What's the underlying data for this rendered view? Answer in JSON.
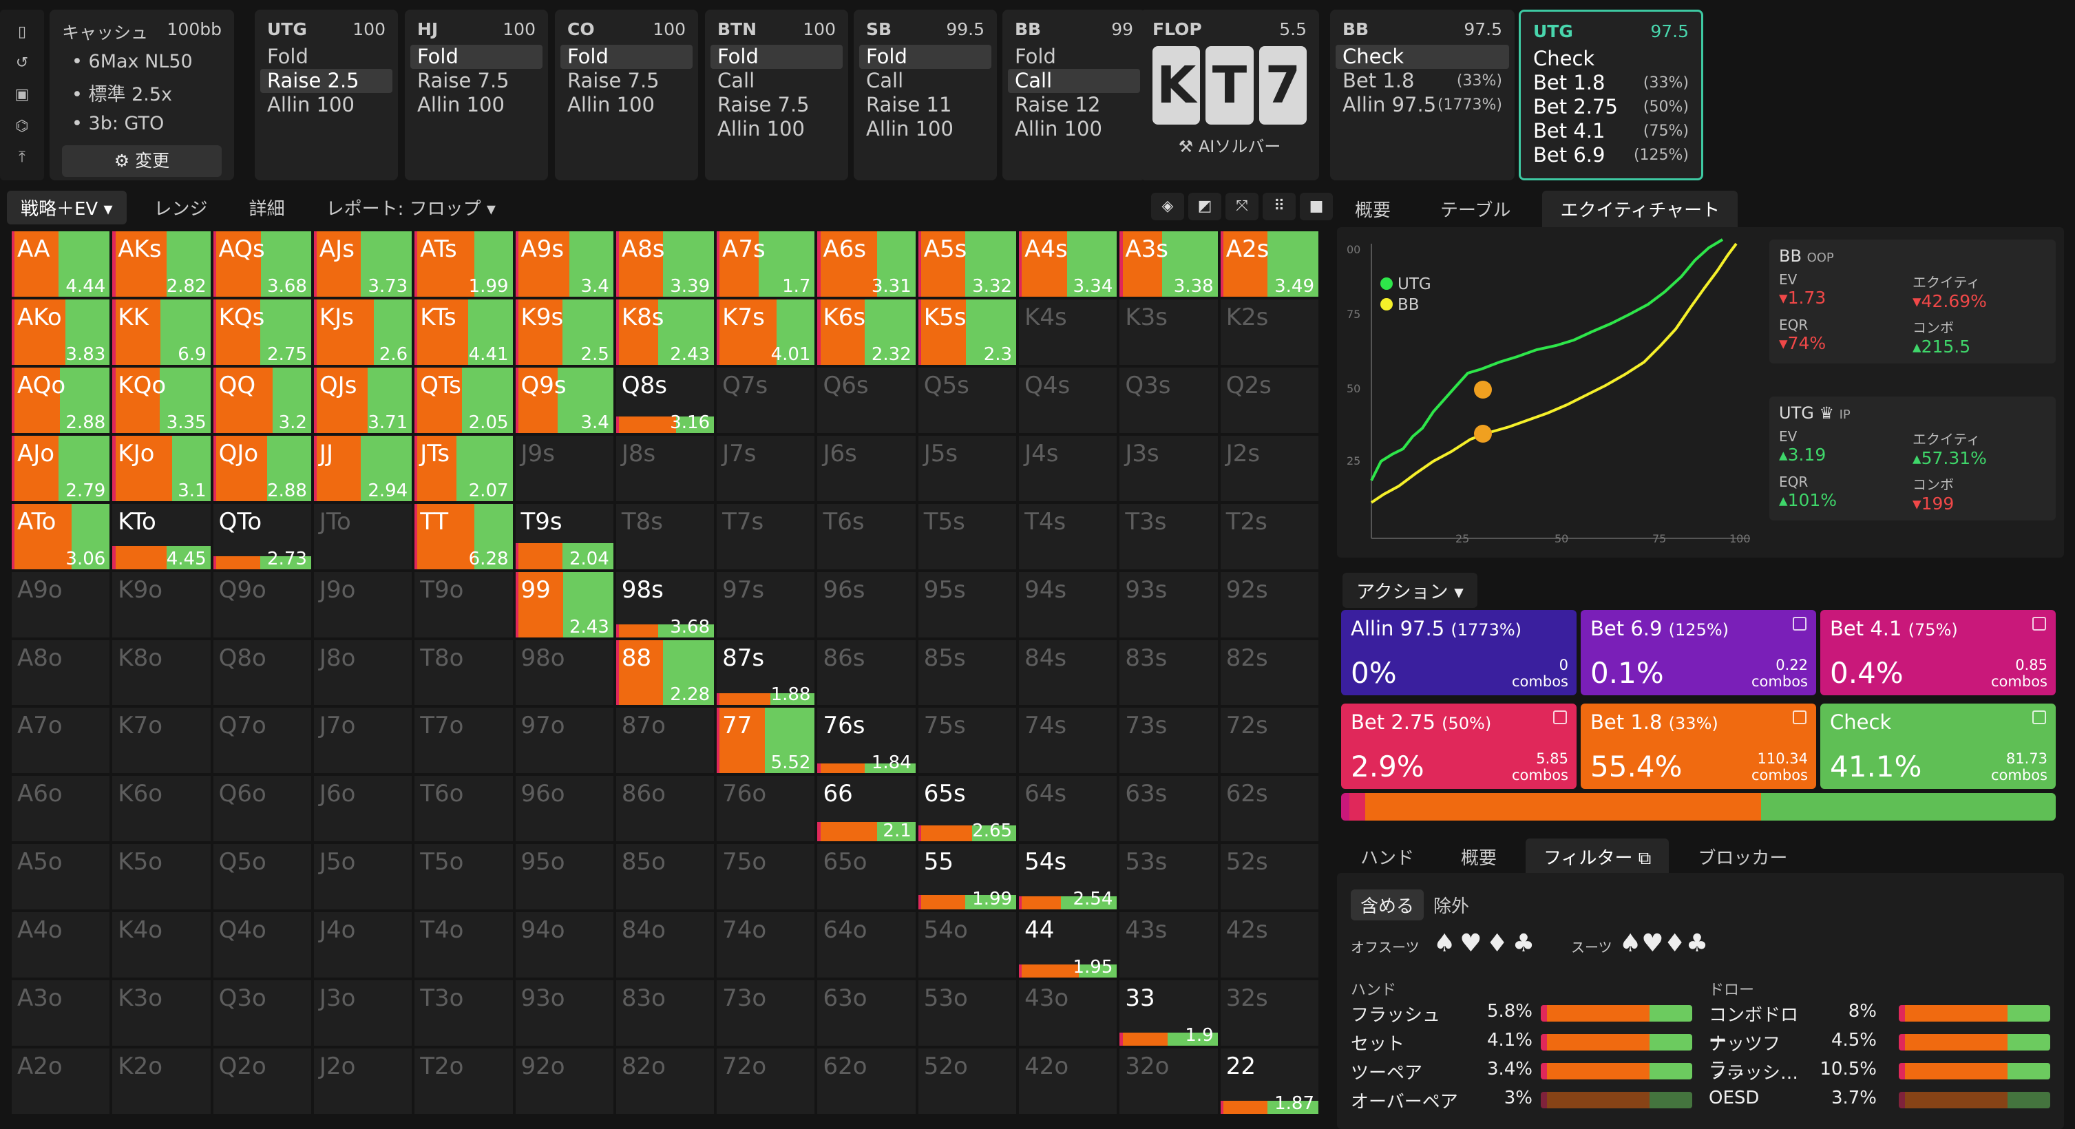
{
  "toolbar_icons": [
    "bookmark-icon",
    "history-icon",
    "save-icon",
    "gamepad-icon",
    "collapse-icon"
  ],
  "cash": {
    "title": "キャッシュ",
    "stack": "100bb",
    "items": [
      "6Max NL50",
      "標準 2.5x",
      "3b: GTO"
    ],
    "change": "変更"
  },
  "positions": [
    {
      "name": "UTG",
      "stack": "100",
      "acts": [
        {
          "l": "Fold"
        },
        {
          "l": "Raise 2.5",
          "sel": true
        },
        {
          "l": "Allin 100"
        }
      ]
    },
    {
      "name": "HJ",
      "stack": "100",
      "acts": [
        {
          "l": "Fold",
          "sel": true
        },
        {
          "l": "Raise 7.5"
        },
        {
          "l": "Allin 100"
        }
      ]
    },
    {
      "name": "CO",
      "stack": "100",
      "acts": [
        {
          "l": "Fold",
          "sel": true
        },
        {
          "l": "Raise 7.5"
        },
        {
          "l": "Allin 100"
        }
      ]
    },
    {
      "name": "BTN",
      "stack": "100",
      "acts": [
        {
          "l": "Fold",
          "sel": true
        },
        {
          "l": "Call"
        },
        {
          "l": "Raise 7.5"
        },
        {
          "l": "Allin 100"
        }
      ]
    },
    {
      "name": "SB",
      "stack": "99.5",
      "acts": [
        {
          "l": "Fold",
          "sel": true
        },
        {
          "l": "Call"
        },
        {
          "l": "Raise 11"
        },
        {
          "l": "Allin 100"
        }
      ]
    },
    {
      "name": "BB",
      "stack": "99",
      "acts": [
        {
          "l": "Fold"
        },
        {
          "l": "Call",
          "sel": true
        },
        {
          "l": "Raise 12"
        },
        {
          "l": "Allin 100"
        }
      ]
    }
  ],
  "flop": {
    "name": "FLOP",
    "pot": "5.5",
    "cards": [
      "K",
      "T",
      "7"
    ],
    "solver": "AIソルバー"
  },
  "bb_node": {
    "name": "BB",
    "stack": "97.5",
    "acts": [
      {
        "l": "Check",
        "sel": true
      },
      {
        "l": "Bet 1.8",
        "p": "(33%)"
      },
      {
        "l": "Allin 97.5",
        "p": "(1773%)"
      }
    ]
  },
  "utg_node": {
    "name": "UTG",
    "stack": "97.5",
    "acts": [
      {
        "l": "Check"
      },
      {
        "l": "Bet 1.8",
        "p": "(33%)"
      },
      {
        "l": "Bet 2.75",
        "p": "(50%)"
      },
      {
        "l": "Bet 4.1",
        "p": "(75%)"
      },
      {
        "l": "Bet 6.9",
        "p": "(125%)"
      }
    ]
  },
  "tabs": [
    "戦略＋EV",
    "レンジ",
    "詳細",
    "レポート: フロップ"
  ],
  "tool_icons": [
    "cube-icon",
    "contrast-icon",
    "expand-icon",
    "grid-icon",
    "square-icon"
  ],
  "colors": {
    "raise": "#f06a10",
    "call": "#6ccb5f",
    "bet": "#e0285a",
    "allin": "#7a1fb8",
    "empty": "#1f1f1f"
  },
  "grid": [
    [
      "AA|4.44|1",
      "AKs|2.82|1",
      "AQs|3.68|1",
      "AJs|3.73|1",
      "ATs|1.99|1",
      "A9s|3.4|1",
      "A8s|3.39|1",
      "A7s|1.7|1",
      "A6s|3.31|1",
      "A5s|3.32|1",
      "A4s|3.34|1",
      "A3s|3.38|1",
      "A2s|3.49|1"
    ],
    [
      "AKo|3.83|1",
      "KK|6.9|1",
      "KQs|2.75|1",
      "KJs|2.6|1",
      "KTs|4.41|1",
      "K9s|2.5|1",
      "K8s|2.43|1",
      "K7s|4.01|1",
      "K6s|2.32|1",
      "K5s|2.3|1",
      "K4s||0",
      "K3s||0",
      "K2s||0"
    ],
    [
      "AQo|2.88|1",
      "KQo|3.35|1",
      "QQ|3.2|1",
      "QJs|3.71|1",
      "QTs|2.05|1",
      "Q9s|3.4|1",
      "Q8s|3.16|0.25",
      "Q7s||0",
      "Q6s||0",
      "Q5s||0",
      "Q4s||0",
      "Q3s||0",
      "Q2s||0"
    ],
    [
      "AJo|2.79|1",
      "KJo|3.1|1",
      "QJo|2.88|1",
      "JJ|2.94|1",
      "JTs|2.07|1",
      "J9s||0",
      "J8s||0",
      "J7s||0",
      "J6s||0",
      "J5s||0",
      "J4s||0",
      "J3s||0",
      "J2s||0"
    ],
    [
      "ATo|3.06|1",
      "KTo|4.45|0.35",
      "QTo|2.73|0.2",
      "JTo||0",
      "TT|6.28|1",
      "T9s|2.04|0.4",
      "T8s||0",
      "T7s||0",
      "T6s||0",
      "T5s||0",
      "T4s||0",
      "T3s||0",
      "T2s||0"
    ],
    [
      "A9o||0",
      "K9o||0",
      "Q9o||0",
      "J9o||0",
      "T9o||0",
      "99|2.43|1",
      "98s|3.68|0.2",
      "97s||0",
      "96s||0",
      "95s||0",
      "94s||0",
      "93s||0",
      "92s||0"
    ],
    [
      "A8o||0",
      "K8o||0",
      "Q8o||0",
      "J8o||0",
      "T8o||0",
      "98o||0",
      "88|2.28|1",
      "87s|1.88|0.18",
      "86s||0",
      "85s||0",
      "84s||0",
      "83s||0",
      "82s||0"
    ],
    [
      "A7o||0",
      "K7o||0",
      "Q7o||0",
      "J7o||0",
      "T7o||0",
      "97o||0",
      "87o||0",
      "77|5.52|1",
      "76s|1.84|0.15",
      "75s||0",
      "74s||0",
      "73s||0",
      "72s||0"
    ],
    [
      "A6o||0",
      "K6o||0",
      "Q6o||0",
      "J6o||0",
      "T6o||0",
      "96o||0",
      "86o||0",
      "76o||0",
      "66|2.1|0.3",
      "65s|2.65|0.25",
      "64s||0",
      "63s||0",
      "62s||0"
    ],
    [
      "A5o||0",
      "K5o||0",
      "Q5o||0",
      "J5o||0",
      "T5o||0",
      "95o||0",
      "85o||0",
      "75o||0",
      "65o||0",
      "55|1.99|0.22",
      "54s|2.54|0.2",
      "53s||0",
      "52s||0"
    ],
    [
      "A4o||0",
      "K4o||0",
      "Q4o||0",
      "J4o||0",
      "T4o||0",
      "94o||0",
      "84o||0",
      "74o||0",
      "64o||0",
      "54o||0",
      "44|1.95|0.2",
      "43s||0",
      "42s||0"
    ],
    [
      "A3o||0",
      "K3o||0",
      "Q3o||0",
      "J3o||0",
      "T3o||0",
      "93o||0",
      "83o||0",
      "73o||0",
      "63o||0",
      "53o||0",
      "43o||0",
      "33|1.9|0.2",
      "32s||0"
    ],
    [
      "A2o||0",
      "K2o||0",
      "Q2o||0",
      "J2o||0",
      "T2o||0",
      "92o||0",
      "82o||0",
      "72o||0",
      "62o||0",
      "52o||0",
      "42o||0",
      "32o||0",
      "22|1.87|0.2"
    ]
  ],
  "right_tabs": [
    "概要",
    "テーブル",
    "エクイティチャート"
  ],
  "chart": {
    "legend": [
      "UTG",
      "BB"
    ],
    "yticks": [
      "00",
      "75",
      "50",
      "25"
    ],
    "xticks": [
      "25",
      "50",
      "75",
      "100"
    ]
  },
  "bb_stats": {
    "title": "BB",
    "tag": "OOP",
    "ev_k": "EV",
    "ev": "1.73",
    "eq_k": "エクイティ",
    "eq": "42.69%",
    "eqr_k": "EQR",
    "eqr": "74%",
    "combo_k": "コンボ",
    "combo": "215.5"
  },
  "utg_stats": {
    "title": "UTG",
    "tag": "IP",
    "ev_k": "EV",
    "ev": "3.19",
    "eq_k": "エクイティ",
    "eq": "57.31%",
    "eqr_k": "EQR",
    "eqr": "101%",
    "combo_k": "コンボ",
    "combo": "199"
  },
  "action_label": "アクション",
  "actions": [
    {
      "t": "Allin 97.5",
      "p": "(1773%)",
      "pc": "0%",
      "c": "0",
      "unit": "combos",
      "col": "#3a1f9e"
    },
    {
      "t": "Bet 6.9",
      "p": "(125%)",
      "pc": "0.1%",
      "c": "0.22",
      "unit": "combos",
      "col": "#7a1fb8"
    },
    {
      "t": "Bet 4.1",
      "p": "(75%)",
      "pc": "0.4%",
      "c": "0.85",
      "unit": "combos",
      "col": "#c9187a"
    },
    {
      "t": "Bet 2.75",
      "p": "(50%)",
      "pc": "2.9%",
      "c": "5.85",
      "unit": "combos",
      "col": "#e0285a"
    },
    {
      "t": "Bet 1.8",
      "p": "(33%)",
      "pc": "55.4%",
      "c": "110.34",
      "unit": "combos",
      "col": "#f06a10"
    },
    {
      "t": "Check",
      "p": "",
      "pc": "41.1%",
      "c": "81.73",
      "unit": "combos",
      "col": "#5fbf55"
    }
  ],
  "bottom_tabs": [
    "ハンド",
    "概要",
    "フィルター",
    "ブロッカー"
  ],
  "filter": {
    "include": "含める",
    "exclude": "除外",
    "offsuit": "オフスーツ",
    "suits": "スーツ",
    "hands_h": "ハンド",
    "draws_h": "ドロー"
  },
  "hands": [
    {
      "n": "フラッシュ",
      "v": "5.8%"
    },
    {
      "n": "セット",
      "v": "4.1%"
    },
    {
      "n": "ツーペア",
      "v": "3.4%"
    },
    {
      "n": "オーバーペア",
      "v": "3%"
    }
  ],
  "draws": [
    {
      "n": "コンボドロー",
      "v": "8%"
    },
    {
      "n": "ナッツフラ…",
      "v": "4.5%"
    },
    {
      "n": "フラッシ…",
      "v": "10.5%"
    },
    {
      "n": "OESD",
      "v": "3.7%"
    }
  ]
}
